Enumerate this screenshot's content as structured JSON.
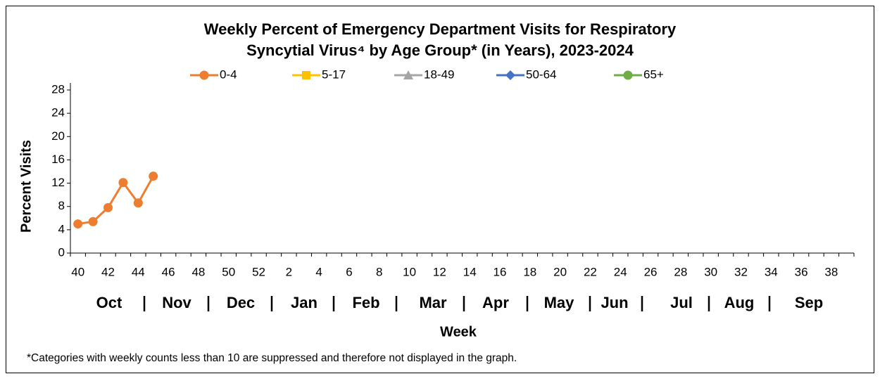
{
  "chart_data": {
    "type": "line",
    "title": [
      "Weekly Percent of Emergency Department Visits for Respiratory",
      "Syncytial Virus⁴ by Age Group* (in Years), 2023-2024"
    ],
    "y_label": "Percent Visits",
    "x_label": "Week",
    "month_labels": [
      "Oct",
      "Nov",
      "Dec",
      "Jan",
      "Feb",
      "Mar",
      "Apr",
      "May",
      "Jun",
      "Jul",
      "Aug",
      "Sep"
    ],
    "footnote": "*Categories with weekly counts less than 10 are suppressed and therefore not displayed in the graph.",
    "categories": [
      40,
      null,
      42,
      null,
      44,
      null,
      46,
      null,
      48,
      null,
      50,
      null,
      52,
      null,
      2,
      null,
      4,
      null,
      6,
      null,
      8,
      null,
      10,
      null,
      12,
      null,
      14,
      null,
      16,
      null,
      18,
      null,
      20,
      null,
      22,
      null,
      24,
      null,
      26,
      null,
      28,
      null,
      30,
      null,
      32,
      null,
      34,
      null,
      36,
      null,
      38,
      null
    ],
    "series": [
      {
        "name": "0-4",
        "color": "#ED7D31",
        "marker": "circle",
        "values": [
          5.0,
          5.4,
          7.8,
          12.1,
          8.6,
          13.2,
          null,
          null,
          null,
          null,
          null,
          null,
          null,
          null,
          null,
          null,
          null,
          null,
          null,
          null,
          null,
          null,
          null,
          null,
          null,
          null,
          null,
          null,
          null,
          null,
          null,
          null,
          null,
          null,
          null,
          null,
          null,
          null,
          null,
          null,
          null,
          null,
          null,
          null,
          null,
          null,
          null,
          null,
          null,
          null,
          null,
          null
        ]
      },
      {
        "name": "5-17",
        "color": "#FFC000",
        "marker": "square",
        "values": [
          null,
          null,
          null,
          null,
          null,
          null,
          null,
          null,
          null,
          null,
          null,
          null,
          null,
          null,
          null,
          null,
          null,
          null,
          null,
          null,
          null,
          null,
          null,
          null,
          null,
          null,
          null,
          null,
          null,
          null,
          null,
          null,
          null,
          null,
          null,
          null,
          null,
          null,
          null,
          null,
          null,
          null,
          null,
          null,
          null,
          null,
          null,
          null,
          null,
          null,
          null,
          null
        ]
      },
      {
        "name": "18-49",
        "color": "#A5A5A5",
        "marker": "triangle",
        "values": [
          null,
          null,
          null,
          null,
          null,
          null,
          null,
          null,
          null,
          null,
          null,
          null,
          null,
          null,
          null,
          null,
          null,
          null,
          null,
          null,
          null,
          null,
          null,
          null,
          null,
          null,
          null,
          null,
          null,
          null,
          null,
          null,
          null,
          null,
          null,
          null,
          null,
          null,
          null,
          null,
          null,
          null,
          null,
          null,
          null,
          null,
          null,
          null,
          null,
          null,
          null,
          null
        ]
      },
      {
        "name": "50-64",
        "color": "#4472C4",
        "marker": "diamond",
        "values": [
          null,
          null,
          null,
          null,
          null,
          null,
          null,
          null,
          null,
          null,
          null,
          null,
          null,
          null,
          null,
          null,
          null,
          null,
          null,
          null,
          null,
          null,
          null,
          null,
          null,
          null,
          null,
          null,
          null,
          null,
          null,
          null,
          null,
          null,
          null,
          null,
          null,
          null,
          null,
          null,
          null,
          null,
          null,
          null,
          null,
          null,
          null,
          null,
          null,
          null,
          null,
          null
        ]
      },
      {
        "name": "65+",
        "color": "#70AD47",
        "marker": "circle",
        "values": [
          null,
          null,
          null,
          null,
          null,
          null,
          null,
          null,
          null,
          null,
          null,
          null,
          null,
          null,
          null,
          null,
          null,
          null,
          null,
          null,
          null,
          null,
          null,
          null,
          null,
          null,
          null,
          null,
          null,
          null,
          null,
          null,
          null,
          null,
          null,
          null,
          null,
          null,
          null,
          null,
          null,
          null,
          null,
          null,
          null,
          null,
          null,
          null,
          null,
          null,
          null,
          null
        ]
      }
    ],
    "ylim": [
      0,
      28
    ],
    "yticks": [
      0,
      4,
      8,
      12,
      16,
      20,
      24,
      28
    ],
    "grid": false,
    "legend": "top"
  }
}
